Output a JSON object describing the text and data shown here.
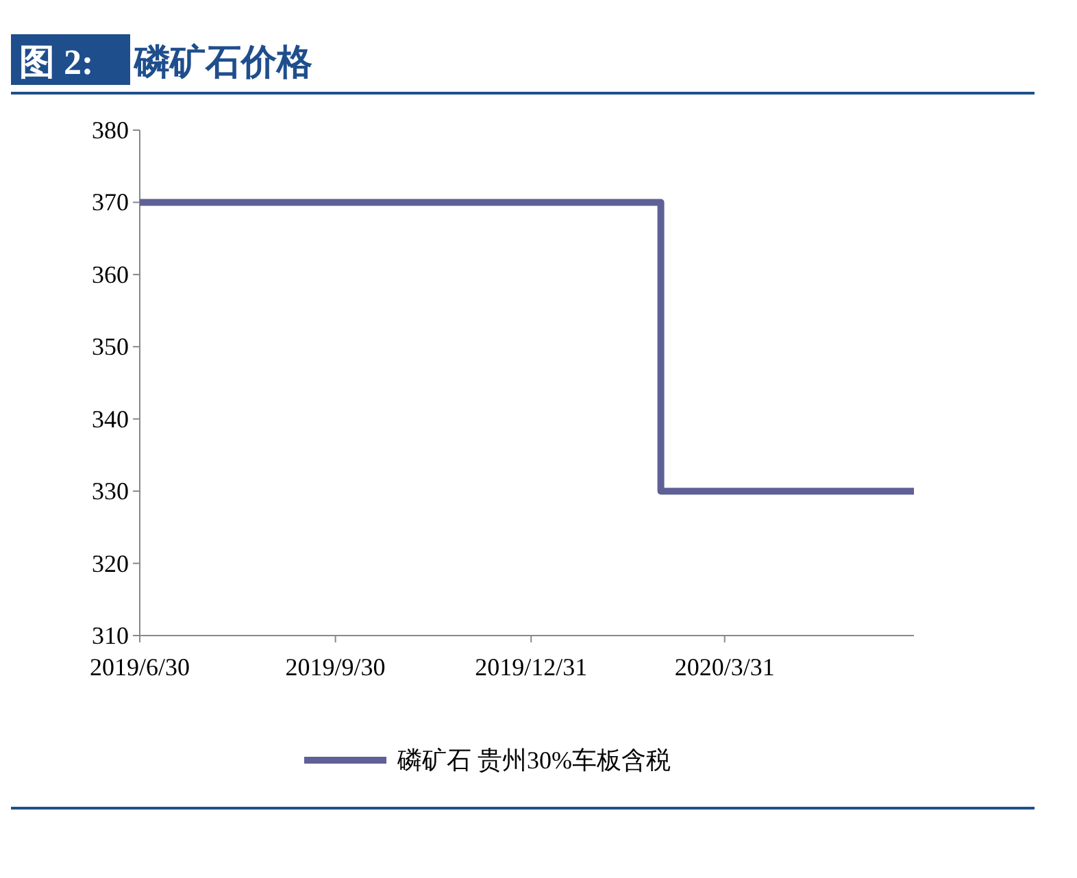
{
  "chart_data": {
    "type": "step",
    "title": "图 2: 磷矿石价格",
    "x": [
      "2019-06-30",
      "2020-03-01",
      "2020-06-28"
    ],
    "series": [
      {
        "name": "磷矿石 贵州30%车板含税",
        "color": "#5f6096",
        "values": [
          370,
          330,
          330
        ]
      }
    ],
    "xlim": [
      "2019-06-30",
      "2020-06-28"
    ],
    "xticks": [
      {
        "value": "2019-06-30",
        "label": "2019/6/30"
      },
      {
        "value": "2019-09-30",
        "label": "2019/9/30"
      },
      {
        "value": "2019-12-31",
        "label": "2019/12/31"
      },
      {
        "value": "2020-03-31",
        "label": "2020/3/31"
      }
    ],
    "ylim": [
      310,
      380
    ],
    "yticks": [
      310,
      320,
      330,
      340,
      350,
      360,
      370,
      380
    ],
    "legend": "bottom"
  }
}
